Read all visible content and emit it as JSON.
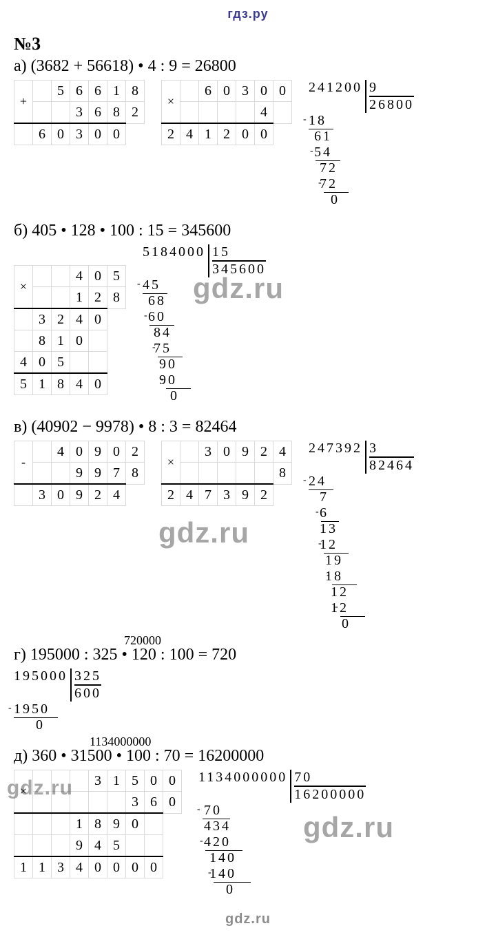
{
  "site_header": "гдз.ру",
  "problem_number": "№3",
  "watermark": "gdz.ru",
  "items": {
    "a": {
      "label": "а)",
      "expression": "(3682 + 56618) • 4 : 9 = 26800",
      "add_table": {
        "op": "+",
        "rows": [
          [
            "",
            "5",
            "6",
            "6",
            "1",
            "8"
          ],
          [
            "",
            "",
            "3",
            "6",
            "8",
            "2"
          ],
          [
            "",
            "6",
            "0",
            "3",
            "0",
            "0"
          ]
        ],
        "rule_before_row": 2
      },
      "mul_table": {
        "op": "×",
        "rows": [
          [
            "",
            "6",
            "0",
            "3",
            "0",
            "0"
          ],
          [
            "",
            "",
            "",
            "",
            "4",
            ""
          ],
          [
            "2",
            "4",
            "1",
            "2",
            "0",
            "0"
          ]
        ],
        "rule_before_row": 2
      },
      "division": {
        "dividend": "241200",
        "divisor": "9",
        "quotient": "26800",
        "steps": [
          {
            "t": "18",
            "minus": true,
            "rule": true,
            "rl": 0,
            "rw": 36,
            "ml": -8
          },
          {
            "t": " 61"
          },
          {
            "t": " 54",
            "minus": true,
            "rule": true,
            "rl": 10,
            "rw": 36,
            "ml": 2
          },
          {
            "t": "  72"
          },
          {
            "t": "  72",
            "minus": true,
            "rule": true,
            "rl": 22,
            "rw": 36,
            "ml": 14
          },
          {
            "t": "    0"
          }
        ]
      }
    },
    "b": {
      "label": "б)",
      "expression": "405 • 128 • 100 : 15 = 345600",
      "mul_table": {
        "op": "×",
        "rows": [
          [
            "",
            "",
            "4",
            "0",
            "5"
          ],
          [
            "",
            "",
            "1",
            "2",
            "8"
          ],
          [
            "",
            "3",
            "2",
            "4",
            "0"
          ],
          [
            "",
            "8",
            "1",
            "0",
            ""
          ],
          [
            "4",
            "0",
            "5",
            "",
            ""
          ],
          [
            "5",
            "1",
            "8",
            "4",
            "0"
          ]
        ],
        "rule_before_rows": [
          2,
          5
        ]
      },
      "division": {
        "dividend": "5184000",
        "divisor": "15",
        "quotient": "345600",
        "steps": [
          {
            "t": "45",
            "minus": true,
            "rule": true,
            "rl": 0,
            "rw": 36,
            "ml": -8
          },
          {
            "t": " 68"
          },
          {
            "t": " 60",
            "minus": true,
            "rule": true,
            "rl": 10,
            "rw": 36,
            "ml": 2
          },
          {
            "t": "  84"
          },
          {
            "t": "  75",
            "minus": true,
            "rule": true,
            "rl": 22,
            "rw": 36,
            "ml": 14
          },
          {
            "t": "   90"
          },
          {
            "t": "   90",
            "minus": true,
            "rule": true,
            "rl": 34,
            "rw": 36,
            "ml": 26
          },
          {
            "t": "     0"
          }
        ]
      }
    },
    "c": {
      "label": "в)",
      "expression": "(40902 − 9978) • 8 : 3 = 82464",
      "sub_table": {
        "op": "-",
        "rows": [
          [
            "",
            "4",
            "0",
            "9",
            "0",
            "2"
          ],
          [
            "",
            "",
            "9",
            "9",
            "7",
            "8"
          ],
          [
            "",
            "3",
            "0",
            "9",
            "2",
            "4"
          ]
        ],
        "rule_before_row": 2
      },
      "mul_table": {
        "op": "×",
        "rows": [
          [
            "",
            "3",
            "0",
            "9",
            "2",
            "4"
          ],
          [
            "",
            "",
            "",
            "",
            "",
            "8"
          ],
          [
            "2",
            "4",
            "7",
            "3",
            "9",
            "2"
          ]
        ],
        "rule_before_row": 2
      },
      "division": {
        "dividend": "247392",
        "divisor": "3",
        "quotient": "82464",
        "steps": [
          {
            "t": "24",
            "minus": true,
            "rule": true,
            "rl": 0,
            "rw": 36,
            "ml": -8
          },
          {
            "t": "  7"
          },
          {
            "t": "  6",
            "minus": true,
            "rule": true,
            "rl": 18,
            "rw": 26,
            "ml": 10
          },
          {
            "t": "  13"
          },
          {
            "t": "  12",
            "minus": true,
            "rule": true,
            "rl": 22,
            "rw": 36,
            "ml": 14
          },
          {
            "t": "   19"
          },
          {
            "t": "   18",
            "minus": true,
            "rule": true,
            "rl": 34,
            "rw": 36,
            "ml": 26
          },
          {
            "t": "    12"
          },
          {
            "t": "    12",
            "minus": true,
            "rule": true,
            "rl": 46,
            "rw": 36,
            "ml": 38
          },
          {
            "t": "      0"
          }
        ]
      }
    },
    "d": {
      "label": "г)",
      "expression": "195000 : 325 • 120 : 100 = 720",
      "annotation": "720000",
      "division": {
        "dividend": "195000",
        "divisor": "325",
        "quotient": "600",
        "steps": [
          {
            "t": "1950",
            "minus": true,
            "rule": true,
            "rl": 0,
            "rw": 64,
            "ml": -8
          },
          {
            "t": "    0"
          }
        ]
      }
    },
    "e": {
      "label": "д)",
      "expression": "360 • 31500 • 100 : 70 = 16200000",
      "annotation": "1134000000",
      "mul_table": {
        "op": "×",
        "rows": [
          [
            "",
            "",
            "",
            "3",
            "1",
            "5",
            "0",
            "0"
          ],
          [
            "",
            "",
            "",
            "",
            "",
            "3",
            "6",
            "0"
          ],
          [
            "",
            "",
            "",
            "1",
            "8",
            "9",
            "0",
            ""
          ],
          [
            "",
            "",
            "",
            "9",
            "4",
            "5",
            "",
            ""
          ],
          [
            "1",
            "1",
            "3",
            "4",
            "0",
            "0",
            "0",
            "0"
          ]
        ],
        "rule_before_rows": [
          2,
          4
        ]
      },
      "division": {
        "dividend": "1134000000",
        "divisor": "70",
        "quotient": "16200000",
        "steps": [
          {
            "t": " 70",
            "minus": true,
            "rule": true,
            "rl": 6,
            "rw": 40,
            "ml": -2
          },
          {
            "t": " 434"
          },
          {
            "t": " 420",
            "minus": true,
            "rule": true,
            "rl": 10,
            "rw": 54,
            "ml": 2
          },
          {
            "t": "  140"
          },
          {
            "t": "  140",
            "minus": true,
            "rule": true,
            "rl": 22,
            "rw": 54,
            "ml": 14
          },
          {
            "t": "     0"
          }
        ]
      }
    }
  }
}
